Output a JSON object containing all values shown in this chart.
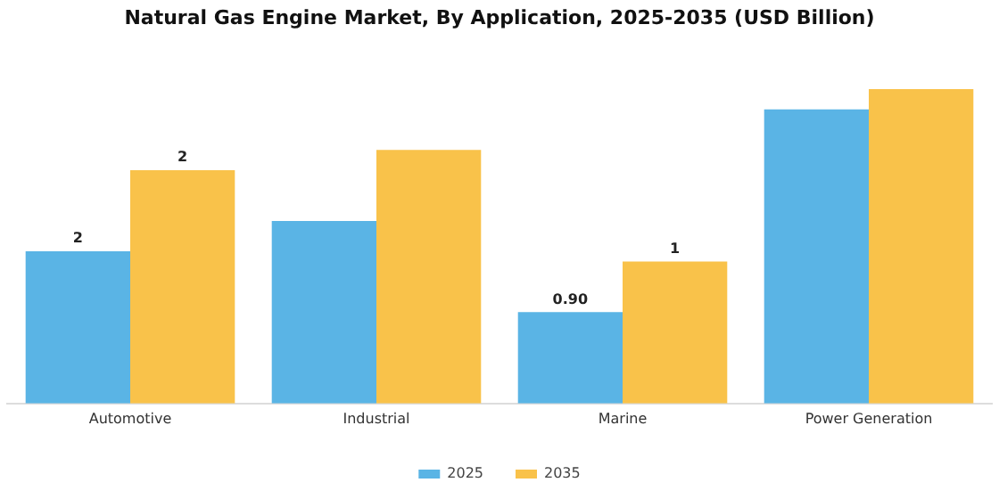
{
  "chart_data": {
    "type": "bar",
    "title": "Natural Gas Engine Market, By Application, 2025-2035 (USD Billion)",
    "categories": [
      "Automotive",
      "Industrial",
      "Marine",
      "Power Generation"
    ],
    "legend": "bottom",
    "tick_labels": "x",
    "series": [
      {
        "name": "2025",
        "color": "#5ab4e5",
        "values": [
          1.5,
          1.8,
          0.9,
          2.9
        ],
        "value_labels": [
          "2",
          null,
          "0.90",
          null
        ]
      },
      {
        "name": "2035",
        "color": "#f9c24a",
        "values": [
          2.3,
          2.5,
          1.4,
          3.1
        ],
        "value_labels": [
          "2",
          null,
          "1",
          null
        ]
      }
    ]
  }
}
